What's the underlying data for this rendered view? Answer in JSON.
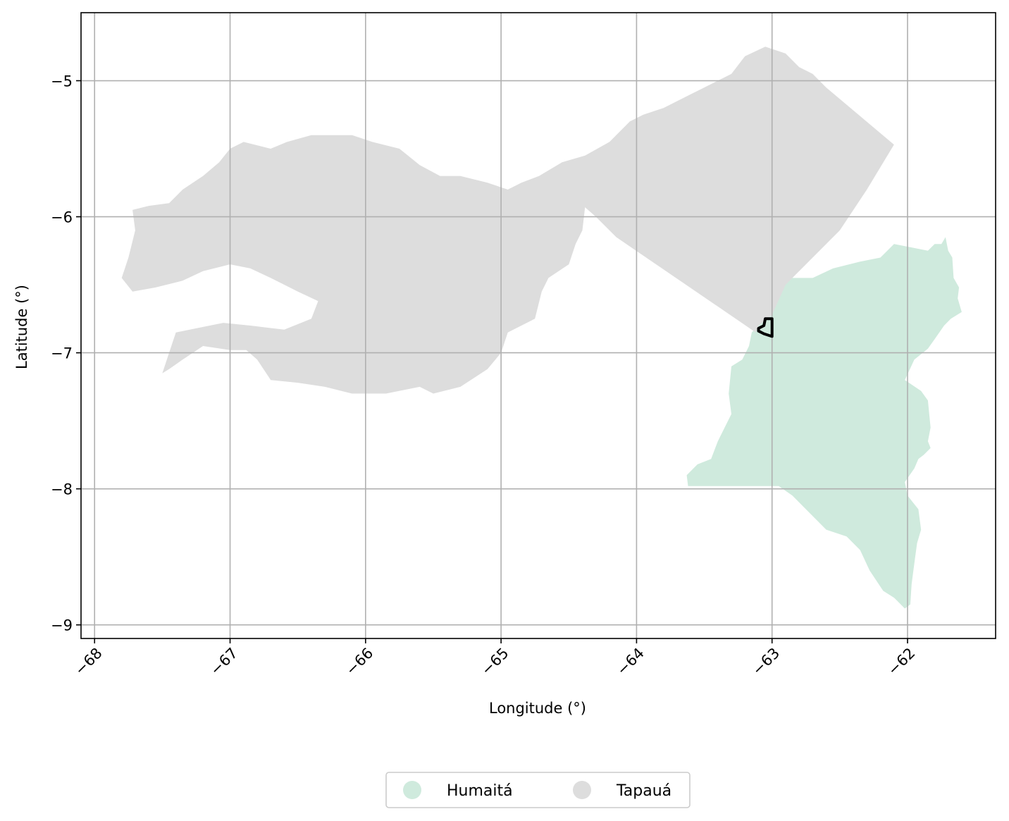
{
  "chart_data": {
    "type": "map",
    "xlabel": "Longitude (°)",
    "ylabel": "Latitude (°)",
    "xlim": [
      -68.1,
      -61.35
    ],
    "ylim": [
      -9.1,
      -4.5
    ],
    "x_ticks": [
      -68,
      -67,
      -66,
      -65,
      -64,
      -63,
      -62
    ],
    "y_ticks": [
      -5,
      -6,
      -7,
      -8,
      -9
    ],
    "x_tick_labels": [
      "−68",
      "−67",
      "−66",
      "−65",
      "−64",
      "−63",
      "−62"
    ],
    "y_tick_labels": [
      "−5",
      "−6",
      "−7",
      "−8",
      "−9"
    ],
    "grid": true,
    "legend_placement": "bottom-center",
    "series": [
      {
        "name": "Humaitá",
        "color": "#cfeadd",
        "polygon": [
          [
            -63.0,
            -6.72
          ],
          [
            -62.95,
            -6.5
          ],
          [
            -62.9,
            -6.45
          ],
          [
            -62.7,
            -6.45
          ],
          [
            -62.55,
            -6.38
          ],
          [
            -62.35,
            -6.33
          ],
          [
            -62.2,
            -6.3
          ],
          [
            -62.1,
            -6.2
          ],
          [
            -62.0,
            -6.22
          ],
          [
            -61.85,
            -6.25
          ],
          [
            -61.8,
            -6.2
          ],
          [
            -61.75,
            -6.2
          ],
          [
            -61.72,
            -6.15
          ],
          [
            -61.7,
            -6.25
          ],
          [
            -61.67,
            -6.3
          ],
          [
            -61.66,
            -6.45
          ],
          [
            -61.62,
            -6.52
          ],
          [
            -61.63,
            -6.6
          ],
          [
            -61.6,
            -6.7
          ],
          [
            -61.68,
            -6.75
          ],
          [
            -61.73,
            -6.8
          ],
          [
            -61.8,
            -6.9
          ],
          [
            -61.85,
            -6.97
          ],
          [
            -61.95,
            -7.05
          ],
          [
            -62.02,
            -7.2
          ],
          [
            -61.9,
            -7.28
          ],
          [
            -61.85,
            -7.35
          ],
          [
            -61.83,
            -7.55
          ],
          [
            -61.85,
            -7.65
          ],
          [
            -61.83,
            -7.7
          ],
          [
            -61.88,
            -7.75
          ],
          [
            -61.92,
            -7.78
          ],
          [
            -61.95,
            -7.85
          ],
          [
            -62.02,
            -7.95
          ],
          [
            -62.0,
            -8.05
          ],
          [
            -61.92,
            -8.15
          ],
          [
            -61.9,
            -8.3
          ],
          [
            -61.93,
            -8.4
          ],
          [
            -61.95,
            -8.55
          ],
          [
            -61.97,
            -8.7
          ],
          [
            -61.98,
            -8.85
          ],
          [
            -62.02,
            -8.88
          ],
          [
            -62.1,
            -8.8
          ],
          [
            -62.18,
            -8.75
          ],
          [
            -62.28,
            -8.6
          ],
          [
            -62.35,
            -8.45
          ],
          [
            -62.45,
            -8.35
          ],
          [
            -62.6,
            -8.3
          ],
          [
            -62.75,
            -8.15
          ],
          [
            -62.85,
            -8.05
          ],
          [
            -62.95,
            -7.98
          ],
          [
            -63.62,
            -7.98
          ],
          [
            -63.63,
            -7.9
          ],
          [
            -63.55,
            -7.82
          ],
          [
            -63.45,
            -7.78
          ],
          [
            -63.4,
            -7.65
          ],
          [
            -63.35,
            -7.55
          ],
          [
            -63.3,
            -7.45
          ],
          [
            -63.32,
            -7.3
          ],
          [
            -63.3,
            -7.1
          ],
          [
            -63.22,
            -7.05
          ],
          [
            -63.17,
            -6.95
          ],
          [
            -63.15,
            -6.85
          ],
          [
            -63.1,
            -6.8
          ]
        ]
      },
      {
        "name": "Tapauá",
        "color": "#dddddd",
        "polygon": [
          [
            -63.12,
            -6.85
          ],
          [
            -64.15,
            -6.15
          ],
          [
            -64.3,
            -6.0
          ],
          [
            -64.38,
            -5.93
          ],
          [
            -64.4,
            -6.1
          ],
          [
            -64.45,
            -6.2
          ],
          [
            -64.5,
            -6.35
          ],
          [
            -64.65,
            -6.45
          ],
          [
            -64.7,
            -6.55
          ],
          [
            -64.75,
            -6.75
          ],
          [
            -64.85,
            -6.8
          ],
          [
            -64.95,
            -6.85
          ],
          [
            -65.0,
            -7.0
          ],
          [
            -65.1,
            -7.12
          ],
          [
            -65.3,
            -7.25
          ],
          [
            -65.5,
            -7.3
          ],
          [
            -65.6,
            -7.25
          ],
          [
            -65.85,
            -7.3
          ],
          [
            -66.1,
            -7.3
          ],
          [
            -66.3,
            -7.25
          ],
          [
            -66.5,
            -7.22
          ],
          [
            -66.7,
            -7.2
          ],
          [
            -66.8,
            -7.05
          ],
          [
            -66.88,
            -6.98
          ],
          [
            -67.0,
            -6.98
          ],
          [
            -67.2,
            -6.95
          ],
          [
            -67.35,
            -7.05
          ],
          [
            -67.45,
            -7.12
          ],
          [
            -67.5,
            -7.15
          ],
          [
            -67.45,
            -7.0
          ],
          [
            -67.4,
            -6.85
          ],
          [
            -67.25,
            -6.82
          ],
          [
            -67.05,
            -6.78
          ],
          [
            -66.85,
            -6.8
          ],
          [
            -66.6,
            -6.83
          ],
          [
            -66.4,
            -6.75
          ],
          [
            -66.35,
            -6.62
          ],
          [
            -66.5,
            -6.55
          ],
          [
            -66.7,
            -6.45
          ],
          [
            -66.85,
            -6.38
          ],
          [
            -67.0,
            -6.35
          ],
          [
            -67.2,
            -6.4
          ],
          [
            -67.35,
            -6.47
          ],
          [
            -67.55,
            -6.52
          ],
          [
            -67.72,
            -6.55
          ],
          [
            -67.8,
            -6.45
          ],
          [
            -67.75,
            -6.3
          ],
          [
            -67.7,
            -6.1
          ],
          [
            -67.72,
            -5.95
          ],
          [
            -67.6,
            -5.92
          ],
          [
            -67.45,
            -5.9
          ],
          [
            -67.35,
            -5.8
          ],
          [
            -67.2,
            -5.7
          ],
          [
            -67.08,
            -5.6
          ],
          [
            -67.0,
            -5.5
          ],
          [
            -66.9,
            -5.45
          ],
          [
            -66.7,
            -5.5
          ],
          [
            -66.58,
            -5.45
          ],
          [
            -66.4,
            -5.4
          ],
          [
            -66.1,
            -5.4
          ],
          [
            -65.95,
            -5.45
          ],
          [
            -65.75,
            -5.5
          ],
          [
            -65.6,
            -5.62
          ],
          [
            -65.45,
            -5.7
          ],
          [
            -65.3,
            -5.7
          ],
          [
            -65.1,
            -5.75
          ],
          [
            -64.95,
            -5.8
          ],
          [
            -64.85,
            -5.75
          ],
          [
            -64.72,
            -5.7
          ],
          [
            -64.55,
            -5.6
          ],
          [
            -64.38,
            -5.55
          ],
          [
            -64.2,
            -5.45
          ],
          [
            -64.05,
            -5.3
          ],
          [
            -63.95,
            -5.25
          ],
          [
            -63.8,
            -5.2
          ],
          [
            -63.6,
            -5.1
          ],
          [
            -63.4,
            -5.0
          ],
          [
            -63.3,
            -4.95
          ],
          [
            -63.2,
            -4.82
          ],
          [
            -63.05,
            -4.75
          ],
          [
            -62.9,
            -4.8
          ],
          [
            -62.8,
            -4.9
          ],
          [
            -62.7,
            -4.95
          ],
          [
            -62.6,
            -5.05
          ],
          [
            -62.1,
            -5.47
          ],
          [
            -62.3,
            -5.8
          ],
          [
            -62.5,
            -6.1
          ],
          [
            -62.75,
            -6.35
          ],
          [
            -62.9,
            -6.5
          ],
          [
            -63.0,
            -6.72
          ],
          [
            -63.1,
            -6.8
          ]
        ]
      }
    ],
    "marker_outline": {
      "color": "#000000",
      "polygon": [
        [
          -63.1,
          -6.82
        ],
        [
          -63.06,
          -6.8
        ],
        [
          -63.05,
          -6.75
        ],
        [
          -63.0,
          -6.75
        ],
        [
          -63.0,
          -6.88
        ],
        [
          -63.06,
          -6.86
        ],
        [
          -63.1,
          -6.84
        ]
      ]
    }
  },
  "legend": {
    "items": [
      {
        "label": "Humaitá",
        "color": "#cfeadd"
      },
      {
        "label": "Tapauá",
        "color": "#dddddd"
      }
    ]
  }
}
